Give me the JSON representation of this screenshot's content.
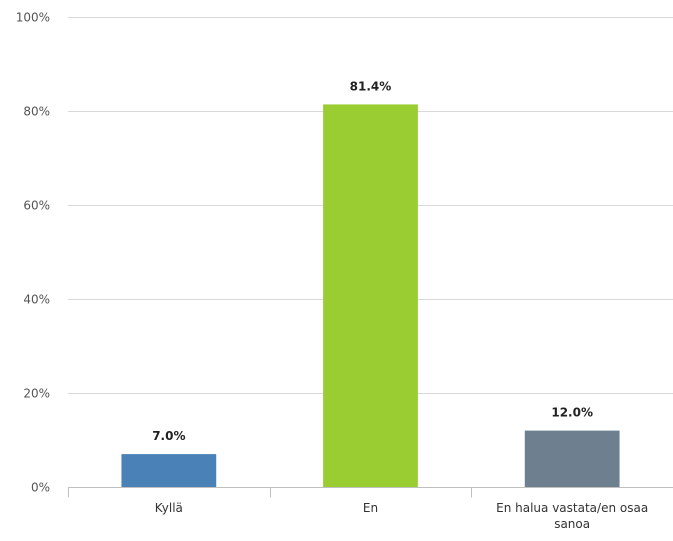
{
  "chart_data": {
    "type": "bar",
    "categories": [
      [
        "Kyllä"
      ],
      [
        "En"
      ],
      [
        "En halua vastata/en osaa",
        "sanoa"
      ]
    ],
    "values": [
      7.0,
      81.4,
      12.0
    ],
    "value_labels": [
      "7.0%",
      "81.4%",
      "12.0%"
    ],
    "colors": [
      "#4a82b8",
      "#9acd32",
      "#6e7f8f"
    ],
    "ylim": [
      0,
      100
    ],
    "y_ticks": [
      0,
      20,
      40,
      60,
      80,
      100
    ],
    "y_tick_labels": [
      "0%",
      "20%",
      "40%",
      "60%",
      "80%",
      "100%"
    ],
    "grid": true,
    "legend": "none",
    "title": "",
    "xlabel": "",
    "ylabel": ""
  }
}
